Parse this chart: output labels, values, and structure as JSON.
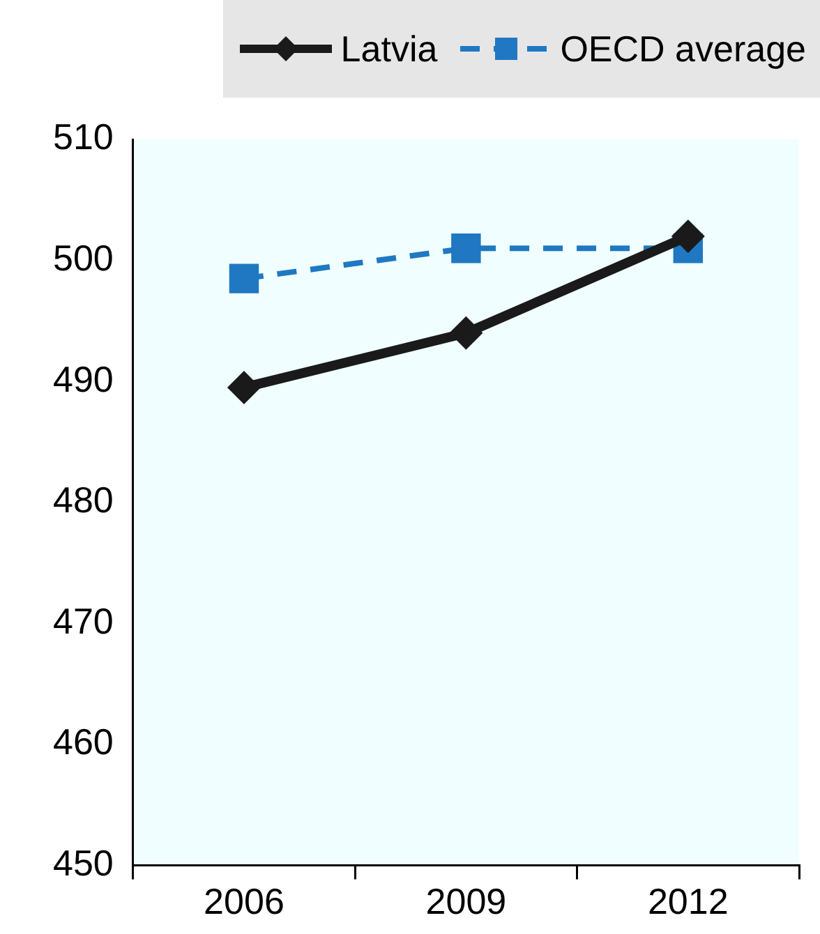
{
  "chart_data": {
    "type": "line",
    "categories": [
      "2006",
      "2009",
      "2012"
    ],
    "series": [
      {
        "name": "Latvia",
        "color": "#1a1a1a",
        "values": [
          489.5,
          494,
          502
        ],
        "marker": "diamond",
        "line_style": "solid"
      },
      {
        "name": "OECD average",
        "color": "#1f78c1",
        "values": [
          498.5,
          501,
          501
        ],
        "marker": "square",
        "line_style": "dashed"
      }
    ],
    "ylim": [
      450,
      510
    ],
    "yticks": [
      450,
      460,
      470,
      480,
      490,
      500,
      510
    ],
    "grid": false,
    "legend": "top right"
  }
}
